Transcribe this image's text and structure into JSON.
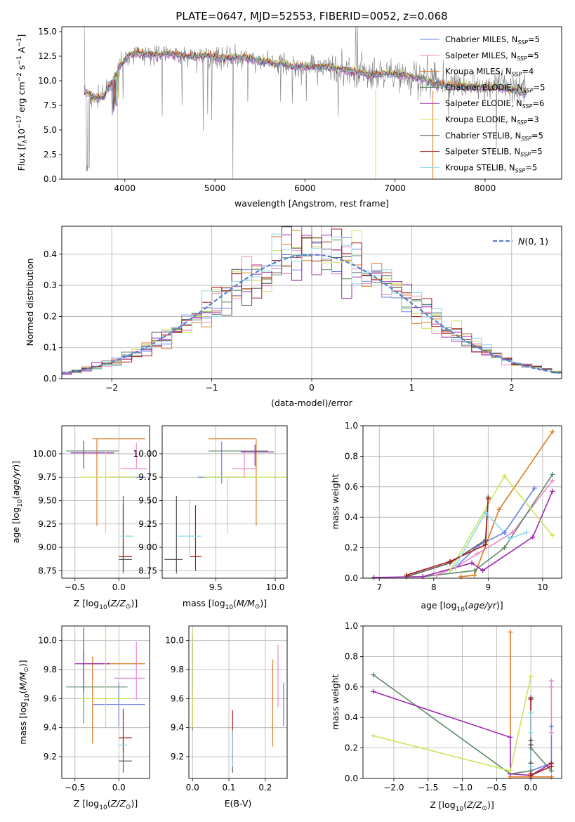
{
  "colors": {
    "series": [
      "#6a80e6",
      "#ee88c8",
      "#de7a22",
      "#5e8a6a",
      "#9c2aae",
      "#c8e65a",
      "#555555",
      "#aa1c1c",
      "#8ad8ea"
    ],
    "model_spectrum": "#808080",
    "normal": "#5580cc",
    "grid": "#b0b0b0"
  },
  "series": [
    {
      "name": "Chabrier MILES, N",
      "sub": "SSP",
      "tail": "=5"
    },
    {
      "name": "Salpeter MILES, N",
      "sub": "SSP",
      "tail": "=5"
    },
    {
      "name": "Kroupa MILES, N",
      "sub": "SSP",
      "tail": "=4"
    },
    {
      "name": "Chabrier ELODIE, N",
      "sub": "SSP",
      "tail": "=5"
    },
    {
      "name": "Salpeter ELODIE, N",
      "sub": "SSP",
      "tail": "=6"
    },
    {
      "name": "Kroupa ELODIE, N",
      "sub": "SSP",
      "tail": "=3"
    },
    {
      "name": "Chabrier STELIB, N",
      "sub": "SSP",
      "tail": "=5"
    },
    {
      "name": "Salpeter STELIB, N",
      "sub": "SSP",
      "tail": "=5"
    },
    {
      "name": "Kroupa STELIB, N",
      "sub": "SSP",
      "tail": "=5"
    }
  ],
  "figure_title": "PLATE=0647, MJD=52553, FIBERID=0052, z=0.068",
  "chart_data": [
    {
      "type": "line",
      "title": "PLATE=0647, MJD=52553, FIBERID=0052, z=0.068",
      "xlabel": "wavelength [Angstrom, rest frame]",
      "ylabel": "Flux [f_λ 10^-17 erg cm^-2 s^-1 A^-1]",
      "xlim": [
        3300,
        8850
      ],
      "ylim": [
        0,
        15.5
      ],
      "xticks": [
        4000,
        5000,
        6000,
        7000,
        8000
      ],
      "yticks": [
        0.0,
        2.5,
        5.0,
        7.5,
        10.0,
        12.5,
        15.0
      ],
      "legend": "top-right",
      "grid": false,
      "spectrum_anchors": {
        "x": [
          3550,
          3650,
          3750,
          3850,
          3950,
          4050,
          4150,
          4300,
          4500,
          4700,
          4900,
          5100,
          5300,
          5500,
          5700,
          5900,
          6100,
          6300,
          6500,
          6700,
          6900,
          7100,
          7300,
          7500,
          7700,
          7900,
          8100,
          8300,
          8450
        ],
        "y": [
          9.0,
          8.2,
          8.3,
          9.6,
          11.5,
          12.6,
          12.8,
          12.6,
          12.7,
          12.4,
          12.5,
          12.3,
          12.3,
          12.0,
          11.7,
          11.4,
          11.4,
          11.3,
          11.0,
          10.6,
          10.7,
          10.5,
          10.2,
          9.9,
          9.7,
          9.6,
          9.6,
          9.3,
          9.0
        ]
      }
    },
    {
      "type": "step",
      "xlabel": "(data-model)/error",
      "ylabel": "Normed distribution",
      "xlim": [
        -2.5,
        2.5
      ],
      "ylim": [
        0,
        0.49
      ],
      "xticks": [
        -2,
        -1,
        0,
        1,
        2
      ],
      "yticks": [
        0.0,
        0.1,
        0.2,
        0.3,
        0.4
      ],
      "legend_label": "N(0,1)",
      "legend": "top-right",
      "grid": true,
      "bin_width": 0.1
    },
    {
      "type": "errorbar",
      "xlabel": "Z [log10(Z/Z☉)]",
      "ylabel": "age [log10(age/yr)]",
      "xlim": [
        -0.65,
        0.35
      ],
      "ylim": [
        8.67,
        10.3
      ],
      "xticks": [
        -0.5,
        0.0
      ],
      "yticks": [
        8.75,
        9.0,
        9.25,
        9.5,
        9.75,
        10.0
      ],
      "grid": true,
      "points": [
        {
          "x": 0.1,
          "y": 9.75,
          "xerr": [
            0.2,
            0.2
          ],
          "yerr": [
            0,
            0
          ]
        },
        {
          "x": 0.2,
          "y": 9.84,
          "xerr": [
            0.18,
            0.12
          ],
          "yerr": [
            0,
            0.28
          ]
        },
        {
          "x": -0.25,
          "y": 10.16,
          "xerr": [
            0.05,
            0.55
          ],
          "yerr": [
            0.93,
            0
          ]
        },
        {
          "x": -0.4,
          "y": 10.03,
          "xerr": [
            0.2,
            0.4
          ],
          "yerr": [
            0,
            0
          ]
        },
        {
          "x": -0.4,
          "y": 10.01,
          "xerr": [
            0.15,
            0.35
          ],
          "yerr": [
            0.17,
            0.13
          ]
        },
        {
          "x": -0.15,
          "y": 9.75,
          "xerr": [
            0.3,
            0.35
          ],
          "yerr": [
            0.6,
            0.3
          ]
        },
        {
          "x": 0.05,
          "y": 8.87,
          "xerr": [
            0.05,
            0.1
          ],
          "yerr": [
            0.15,
            0.68
          ]
        },
        {
          "x": 0.05,
          "y": 8.9,
          "xerr": [
            0.05,
            0.1
          ],
          "yerr": [
            0.15,
            0.55
          ]
        },
        {
          "x": 0.07,
          "y": 9.12,
          "xerr": [
            0.05,
            0.1
          ],
          "yerr": [
            0,
            0
          ]
        }
      ]
    },
    {
      "type": "errorbar",
      "xlabel": "mass [log10(M/M☉)]",
      "xlim": [
        9.05,
        10.1
      ],
      "ylim": [
        8.67,
        10.3
      ],
      "xticks": [
        9.5,
        10.0
      ],
      "yticks": [
        8.75,
        9.0,
        9.25,
        9.5,
        9.75,
        10.0
      ],
      "grid": true,
      "points": [
        {
          "x": 9.55,
          "y": 9.75,
          "xerr": [
            0.2,
            0.2
          ],
          "yerr": [
            0.07,
            0.38
          ]
        },
        {
          "x": 9.74,
          "y": 9.84,
          "xerr": [
            0.1,
            0.1
          ],
          "yerr": [
            0.1,
            0.2
          ]
        },
        {
          "x": 9.84,
          "y": 10.16,
          "xerr": [
            0.4,
            0
          ],
          "yerr": [
            0.93,
            0
          ]
        },
        {
          "x": 9.68,
          "y": 10.03,
          "xerr": [
            0.24,
            0.26
          ],
          "yerr": [
            0,
            0
          ]
        },
        {
          "x": 9.83,
          "y": 10.02,
          "xerr": [
            0.12,
            0.16
          ],
          "yerr": [
            0.15,
            0.08
          ]
        },
        {
          "x": 9.6,
          "y": 9.75,
          "xerr": [
            0.2,
            0.5
          ],
          "yerr": [
            0.6,
            0
          ]
        },
        {
          "x": 9.17,
          "y": 8.87,
          "xerr": [
            0.1,
            0.05
          ],
          "yerr": [
            0.15,
            0.68
          ]
        },
        {
          "x": 9.33,
          "y": 8.9,
          "xerr": [
            0.05,
            0.05
          ],
          "yerr": [
            0.15,
            0.55
          ]
        },
        {
          "x": 9.28,
          "y": 9.12,
          "xerr": [
            0.1,
            0.1
          ],
          "yerr": [
            0.2,
            0.4
          ]
        }
      ]
    },
    {
      "type": "line",
      "xlabel": "age [log10(age/yr)]",
      "ylabel": "mass weight",
      "xlim": [
        6.7,
        10.35
      ],
      "ylim": [
        0,
        1
      ],
      "xticks": [
        7,
        8,
        9,
        10
      ],
      "yticks": [
        0.0,
        0.2,
        0.4,
        0.6,
        0.8,
        1.0
      ],
      "grid": true,
      "series": [
        {
          "x": [
            8.05,
            8.4,
            8.8,
            9.3,
            9.85
          ],
          "y": [
            0.02,
            0.07,
            0.21,
            0.3,
            0.59
          ]
        },
        {
          "x": [
            8.05,
            8.4,
            8.8,
            9.45,
            10.18
          ],
          "y": [
            0.02,
            0.07,
            0.16,
            0.3,
            0.64
          ]
        },
        {
          "x": [
            8.5,
            8.75,
            9.2,
            10.18
          ],
          "y": [
            0.01,
            0.02,
            0.45,
            0.96
          ]
        },
        {
          "x": [
            7.8,
            8.75,
            9.3,
            10.18
          ],
          "y": [
            0.01,
            0.05,
            0.2,
            0.68
          ]
        },
        {
          "x": [
            6.9,
            7.8,
            8.7,
            8.9,
            9.82,
            10.18
          ],
          "y": [
            0.005,
            0.01,
            0.1,
            0.05,
            0.27,
            0.57
          ]
        },
        {
          "x": [
            8.3,
            9.3,
            10.18
          ],
          "y": [
            0.05,
            0.67,
            0.28
          ]
        },
        {
          "x": [
            7.5,
            8.3,
            8.95,
            9.0
          ],
          "y": [
            0.01,
            0.1,
            0.25,
            0.53
          ]
        },
        {
          "x": [
            7.5,
            8.3,
            8.95,
            9.0
          ],
          "y": [
            0.02,
            0.11,
            0.22,
            0.52
          ]
        },
        {
          "x": [
            8.4,
            8.95,
            9.4,
            9.7
          ],
          "y": [
            0.08,
            0.43,
            0.26,
            0.3
          ]
        }
      ]
    },
    {
      "type": "errorbar",
      "xlabel": "Z [log10(Z/Z☉)]",
      "ylabel": "mass [log10(M/M☉)]",
      "xlim": [
        -0.65,
        0.35
      ],
      "ylim": [
        9.05,
        10.1
      ],
      "xticks": [
        -0.5,
        0.0
      ],
      "yticks": [
        9.2,
        9.4,
        9.6,
        9.8,
        10.0
      ],
      "grid": true,
      "points": [
        {
          "x": 0.0,
          "y": 9.56,
          "xerr": [
            0.3,
            0.3
          ],
          "yerr": [
            0.15,
            0.15
          ]
        },
        {
          "x": 0.2,
          "y": 9.74,
          "xerr": [
            0.25,
            0.1
          ],
          "yerr": [
            0.15,
            0.25
          ]
        },
        {
          "x": -0.3,
          "y": 9.84,
          "xerr": [
            0.1,
            0.6
          ],
          "yerr": [
            0.55,
            0.05
          ]
        },
        {
          "x": -0.4,
          "y": 9.68,
          "xerr": [
            0.2,
            0.5
          ],
          "yerr": [
            0.25,
            0.25
          ]
        },
        {
          "x": -0.4,
          "y": 9.84,
          "xerr": [
            0.1,
            0.3
          ],
          "yerr": [
            0.2,
            0.25
          ]
        },
        {
          "x": -0.15,
          "y": 9.6,
          "xerr": [
            0.3,
            0.3
          ],
          "yerr": [
            0.2,
            0.5
          ]
        },
        {
          "x": 0.05,
          "y": 9.17,
          "xerr": [
            0.05,
            0.1
          ],
          "yerr": [
            0.08,
            0.15
          ]
        },
        {
          "x": 0.05,
          "y": 9.33,
          "xerr": [
            0.05,
            0.1
          ],
          "yerr": [
            0.1,
            0.2
          ]
        },
        {
          "x": 0.05,
          "y": 9.28,
          "xerr": [
            0.05,
            0.05
          ],
          "yerr": [
            0,
            0
          ]
        }
      ]
    },
    {
      "type": "errorbar",
      "xlabel": "E(B-V)",
      "xlim": [
        -0.01,
        0.26
      ],
      "ylim": [
        9.05,
        10.1
      ],
      "xticks": [
        0.0,
        0.1,
        0.2
      ],
      "yticks": [
        9.2,
        9.4,
        9.6,
        9.8,
        10.0
      ],
      "grid": true,
      "points": [
        {
          "x": 0.25,
          "y": 9.56,
          "xerr": [
            0,
            0
          ],
          "yerr": [
            0.15,
            0.15
          ]
        },
        {
          "x": 0.235,
          "y": 9.74,
          "xerr": [
            0,
            0
          ],
          "yerr": [
            0.2,
            0.23
          ]
        },
        {
          "x": 0.22,
          "y": 9.84,
          "xerr": [
            0,
            0
          ],
          "yerr": [
            0.57,
            0.03
          ]
        },
        {
          "x": 0.0,
          "y": 9.68,
          "xerr": [
            0,
            0
          ],
          "yerr": [
            0.3,
            0.3
          ]
        },
        {
          "x": 0.0,
          "y": 9.84,
          "xerr": [
            0,
            0
          ],
          "yerr": [
            0.2,
            0.2
          ]
        },
        {
          "x": 0.0,
          "y": 9.6,
          "xerr": [
            0,
            0
          ],
          "yerr": [
            0.2,
            0.48
          ]
        },
        {
          "x": 0.11,
          "y": 9.17,
          "xerr": [
            0,
            0
          ],
          "yerr": [
            0.08,
            0.2
          ]
        },
        {
          "x": 0.11,
          "y": 9.33,
          "xerr": [
            0,
            0
          ],
          "yerr": [
            0.15,
            0.19
          ]
        },
        {
          "x": 0.11,
          "y": 9.28,
          "xerr": [
            0,
            0
          ],
          "yerr": [
            0.15,
            0.1
          ]
        }
      ]
    },
    {
      "type": "line",
      "xlabel": "Z [log10(Z/Z☉)]",
      "ylabel": "mass weight",
      "xlim": [
        -2.45,
        0.45
      ],
      "ylim": [
        0,
        1
      ],
      "xticks": [
        -2.0,
        -1.5,
        -1.0,
        -0.5,
        0.0
      ],
      "yticks": [
        0.0,
        0.2,
        0.4,
        0.6,
        0.8,
        1.0
      ],
      "grid": true,
      "series": [
        {
          "x": [
            0.0,
            0.0,
            0.3,
            0.3
          ],
          "y": [
            0.0,
            0.05,
            0.1,
            0.34
          ]
        },
        {
          "x": [
            0.3,
            0.3,
            0.3
          ],
          "y": [
            0.64,
            0.6,
            0.3
          ]
        },
        {
          "x": [
            -0.3,
            -0.3,
            0.0,
            0.3
          ],
          "y": [
            0.96,
            0.01,
            0.01,
            0.01
          ]
        },
        {
          "x": [
            -2.3,
            -0.3,
            0.0,
            0.0,
            0.3
          ],
          "y": [
            0.68,
            0.03,
            0.05,
            0.2,
            0.05
          ]
        },
        {
          "x": [
            -2.3,
            -0.3,
            -0.3,
            0.0,
            0.3
          ],
          "y": [
            0.57,
            0.27,
            0.03,
            0.02,
            0.1
          ]
        },
        {
          "x": [
            -2.3,
            -0.3,
            0.0
          ],
          "y": [
            0.28,
            0.05,
            0.67
          ]
        },
        {
          "x": [
            0.0,
            0.0,
            0.0,
            0.0
          ],
          "y": [
            0.1,
            0.22,
            0.25,
            0.53
          ]
        },
        {
          "x": [
            0.0,
            0.0,
            0.0,
            0.3,
            0.3
          ],
          "y": [
            0.52,
            0.03,
            0.02,
            0.08,
            0.1
          ]
        },
        {
          "x": [
            0.0,
            0.0,
            0.0
          ],
          "y": [
            0.43,
            0.3,
            0.08
          ]
        }
      ]
    }
  ]
}
